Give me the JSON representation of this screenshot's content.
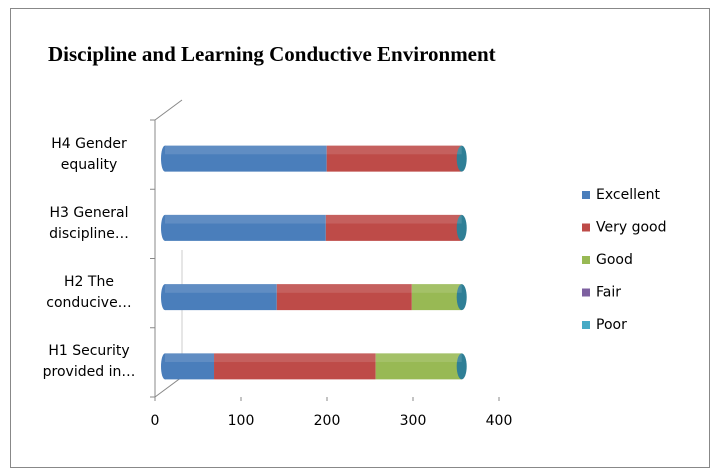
{
  "chart_data": {
    "type": "bar",
    "stacked": true,
    "orientation": "horizontal",
    "title": "Discipline and Learning Conductive Environment",
    "categories": [
      "H4 Gender equality",
      "H3 General discipline…",
      "H2 The conducive…",
      "H1 Security provided in…"
    ],
    "series": [
      {
        "name": "Excellent",
        "color": "#4a7ebb",
        "values": [
          188,
          187,
          130,
          57
        ]
      },
      {
        "name": "Very good",
        "color": "#be4b48",
        "values": [
          157,
          158,
          157,
          188
        ]
      },
      {
        "name": "Good",
        "color": "#98b954",
        "values": [
          0,
          0,
          58,
          100
        ]
      },
      {
        "name": "Fair",
        "color": "#7d60a0",
        "values": [
          0,
          0,
          0,
          0
        ]
      },
      {
        "name": "Poor",
        "color": "#46aac5",
        "values": [
          0,
          0,
          0,
          0
        ]
      }
    ],
    "xlim": [
      0,
      400
    ],
    "xticks": [
      0,
      100,
      200,
      300,
      400
    ],
    "legend": "right"
  }
}
